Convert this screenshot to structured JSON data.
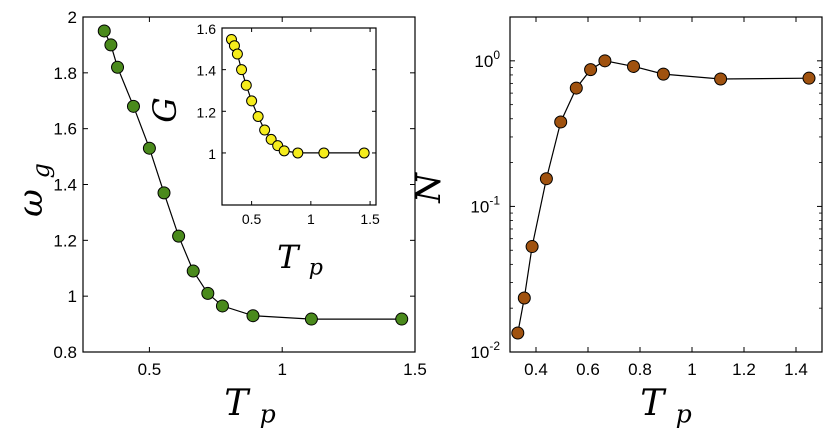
{
  "chart_data": [
    {
      "type": "line",
      "id": "left-main",
      "title": "",
      "xlabel": "T_p",
      "ylabel": "ω_g",
      "xlim": [
        0.25,
        1.5
      ],
      "ylim": [
        0.8,
        2.0
      ],
      "xticks": [
        0.5,
        1,
        1.5
      ],
      "xtick_labels": [
        "0.5",
        "1",
        "1.5"
      ],
      "yticks": [
        0.8,
        1.0,
        1.2,
        1.4,
        1.6,
        1.8,
        2.0
      ],
      "ytick_labels": [
        "0.8",
        "1",
        "1.2",
        "1.4",
        "1.6",
        "1.8",
        "2"
      ],
      "marker_color": "#4a8a1c",
      "series": [
        {
          "name": "omega_g",
          "x": [
            0.33,
            0.355,
            0.38,
            0.44,
            0.5,
            0.555,
            0.61,
            0.665,
            0.72,
            0.775,
            0.89,
            1.11,
            1.45
          ],
          "y": [
            1.95,
            1.9,
            1.82,
            1.68,
            1.53,
            1.37,
            1.215,
            1.09,
            1.01,
            0.965,
            0.93,
            0.918,
            0.918
          ]
        }
      ]
    },
    {
      "type": "line",
      "id": "inset",
      "title": "",
      "xlabel": "T_p",
      "ylabel": "G",
      "xlim": [
        0.25,
        1.55
      ],
      "ylim": [
        0.75,
        1.6
      ],
      "xticks": [
        0.5,
        1,
        1.5
      ],
      "xtick_labels": [
        "0.5",
        "1",
        "1.5"
      ],
      "yticks": [
        1.0,
        1.2,
        1.4,
        1.6
      ],
      "ytick_labels": [
        "1",
        "1.2",
        "1.4",
        "1.6"
      ],
      "marker_color": "#f5ec1c",
      "series": [
        {
          "name": "G",
          "x": [
            0.33,
            0.355,
            0.38,
            0.415,
            0.455,
            0.5,
            0.555,
            0.61,
            0.665,
            0.72,
            0.775,
            0.89,
            1.11,
            1.45
          ],
          "y": [
            1.545,
            1.515,
            1.475,
            1.4,
            1.325,
            1.25,
            1.175,
            1.11,
            1.065,
            1.035,
            1.01,
            1.0,
            1.0,
            1.0
          ]
        }
      ]
    },
    {
      "type": "line",
      "id": "right-main",
      "title": "",
      "xlabel": "T_p",
      "ylabel": "N",
      "yscale": "log",
      "xlim": [
        0.3,
        1.5
      ],
      "ylim": [
        0.01,
        2.0
      ],
      "xticks": [
        0.4,
        0.6,
        0.8,
        1.0,
        1.2,
        1.4
      ],
      "xtick_labels": [
        "0.4",
        "0.6",
        "0.8",
        "1",
        "1.2",
        "1.4"
      ],
      "yticks": [
        0.01,
        0.1,
        1.0
      ],
      "ytick_labels": [
        {
          "base": "10",
          "exp": "-2"
        },
        {
          "base": "10",
          "exp": "-1"
        },
        {
          "base": "10",
          "exp": "0"
        }
      ],
      "marker_color": "#a0520f",
      "series": [
        {
          "name": "N",
          "x": [
            0.33,
            0.355,
            0.385,
            0.44,
            0.495,
            0.555,
            0.61,
            0.665,
            0.775,
            0.89,
            1.11,
            1.45
          ],
          "y": [
            0.0135,
            0.0235,
            0.053,
            0.155,
            0.38,
            0.65,
            0.87,
            1.0,
            0.915,
            0.81,
            0.75,
            0.76
          ]
        }
      ]
    }
  ]
}
